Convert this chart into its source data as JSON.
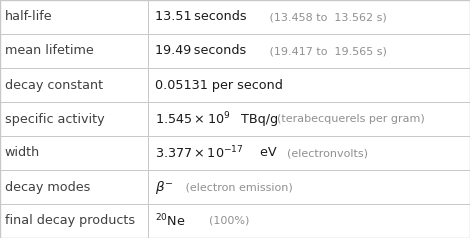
{
  "rows": [
    {
      "label": "half-life"
    },
    {
      "label": "mean lifetime"
    },
    {
      "label": "decay constant"
    },
    {
      "label": "specific activity"
    },
    {
      "label": "width"
    },
    {
      "label": "decay modes"
    },
    {
      "label": "final decay products"
    }
  ],
  "col_split": 0.315,
  "bg_color": "#ffffff",
  "border_color": "#c8c8c8",
  "label_color": "#404040",
  "value_color": "#1a1a1a",
  "detail_color": "#909090",
  "label_fs": 9.2,
  "value_fs": 9.2,
  "detail_fs": 8.0
}
